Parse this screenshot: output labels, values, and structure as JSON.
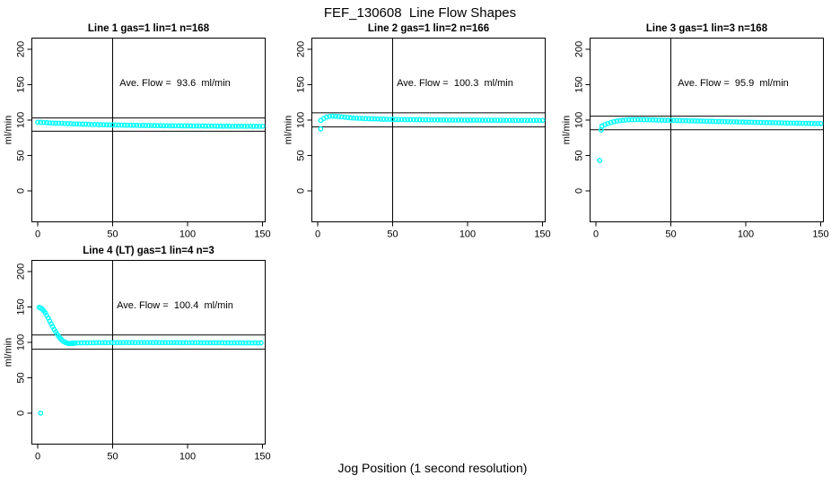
{
  "figure": {
    "title": "FEF_130608  Line Flow Shapes",
    "xlabel": "Jog Position (1 second resolution)",
    "ylabel": "ml/min",
    "point_color": "#00FFFF",
    "line_color": "#000000",
    "background": "#FFFFFF"
  },
  "chart_data": [
    {
      "type": "scatter",
      "title": "Line 1 gas=1 lin=1 n=168",
      "annotation": "Ave. Flow =  93.6  ml/min",
      "ave_flow": 93.6,
      "flow_units": "ml/min",
      "n": 168,
      "gas": 1,
      "lin": 1,
      "ylabel": "ml/min",
      "xlim": [
        -3.9,
        151.8
      ],
      "ylim": [
        -43.7,
        215.8
      ],
      "xticks": [
        0,
        50,
        100,
        150
      ],
      "yticks": [
        0,
        50,
        100,
        150,
        200
      ],
      "ref_lines_y": [
        102.96,
        84.24
      ],
      "vline_x": 50,
      "points": [
        [
          0,
          97.0
        ],
        [
          2,
          96.7
        ],
        [
          4,
          96.5
        ],
        [
          6,
          96.4
        ],
        [
          8,
          96.0
        ],
        [
          10,
          95.9
        ],
        [
          12,
          95.6
        ],
        [
          14,
          95.5
        ],
        [
          16,
          95.4
        ],
        [
          18,
          95.1
        ],
        [
          20,
          95.0
        ],
        [
          22,
          94.9
        ],
        [
          24,
          94.6
        ],
        [
          26,
          94.6
        ],
        [
          28,
          94.4
        ],
        [
          30,
          94.2
        ],
        [
          32,
          94.2
        ],
        [
          34,
          94.0
        ],
        [
          36,
          93.8
        ],
        [
          38,
          93.8
        ],
        [
          40,
          93.7
        ],
        [
          42,
          93.5
        ],
        [
          44,
          93.5
        ],
        [
          46,
          93.3
        ],
        [
          48,
          93.3
        ],
        [
          50,
          93.1
        ],
        [
          52,
          93.1
        ],
        [
          54,
          93.0
        ],
        [
          56,
          92.9
        ],
        [
          58,
          92.9
        ],
        [
          60,
          92.7
        ],
        [
          62,
          92.7
        ],
        [
          64,
          92.6
        ],
        [
          66,
          92.6
        ],
        [
          68,
          92.4
        ],
        [
          70,
          92.5
        ],
        [
          72,
          92.3
        ],
        [
          74,
          92.4
        ],
        [
          76,
          92.2
        ],
        [
          78,
          92.3
        ],
        [
          80,
          92.1
        ],
        [
          82,
          92.2
        ],
        [
          84,
          92.0
        ],
        [
          86,
          92.1
        ],
        [
          88,
          91.9
        ],
        [
          90,
          92.0
        ],
        [
          92,
          91.9
        ],
        [
          94,
          91.9
        ],
        [
          96,
          91.8
        ],
        [
          98,
          91.8
        ],
        [
          100,
          91.7
        ],
        [
          102,
          91.8
        ],
        [
          104,
          91.6
        ],
        [
          106,
          91.7
        ],
        [
          108,
          91.6
        ],
        [
          110,
          91.7
        ],
        [
          112,
          91.5
        ],
        [
          114,
          91.6
        ],
        [
          116,
          91.5
        ],
        [
          118,
          91.6
        ],
        [
          120,
          91.4
        ],
        [
          122,
          91.5
        ],
        [
          124,
          91.4
        ],
        [
          126,
          91.5
        ],
        [
          128,
          91.4
        ],
        [
          130,
          91.3
        ],
        [
          132,
          91.4
        ],
        [
          134,
          91.3
        ],
        [
          136,
          91.4
        ],
        [
          138,
          91.3
        ],
        [
          140,
          91.3
        ],
        [
          142,
          91.4
        ],
        [
          144,
          91.2
        ],
        [
          146,
          91.3
        ],
        [
          148,
          91.2
        ],
        [
          150,
          91.3
        ]
      ],
      "outliers": []
    },
    {
      "type": "scatter",
      "title": "Line 2 gas=1 lin=2 n=166",
      "annotation": "Ave. Flow =  100.3  ml/min",
      "ave_flow": 100.3,
      "flow_units": "ml/min",
      "n": 166,
      "gas": 1,
      "lin": 2,
      "ylabel": "ml/min",
      "xlim": [
        -3.9,
        151.8
      ],
      "ylim": [
        -43.7,
        215.8
      ],
      "xticks": [
        0,
        50,
        100,
        150
      ],
      "yticks": [
        0,
        50,
        100,
        150,
        200
      ],
      "ref_lines_y": [
        110.33,
        90.27
      ],
      "vline_x": 50,
      "points": [
        [
          2,
          99.5
        ],
        [
          4,
          102.3
        ],
        [
          6,
          104.3
        ],
        [
          8,
          105.2
        ],
        [
          10,
          105.5
        ],
        [
          12,
          105.3
        ],
        [
          14,
          105.0
        ],
        [
          16,
          104.6
        ],
        [
          18,
          104.1
        ],
        [
          20,
          103.6
        ],
        [
          22,
          103.2
        ],
        [
          24,
          102.9
        ],
        [
          26,
          102.7
        ],
        [
          28,
          102.5
        ],
        [
          30,
          102.3
        ],
        [
          32,
          102.1
        ],
        [
          34,
          102.0
        ],
        [
          36,
          101.8
        ],
        [
          38,
          101.7
        ],
        [
          40,
          101.6
        ],
        [
          42,
          101.4
        ],
        [
          44,
          101.3
        ],
        [
          46,
          101.2
        ],
        [
          48,
          101.1
        ],
        [
          50,
          101.0
        ],
        [
          52,
          100.9
        ],
        [
          54,
          100.9
        ],
        [
          56,
          100.8
        ],
        [
          58,
          100.7
        ],
        [
          60,
          100.7
        ],
        [
          62,
          100.6
        ],
        [
          64,
          100.6
        ],
        [
          66,
          100.5
        ],
        [
          68,
          100.5
        ],
        [
          70,
          100.4
        ],
        [
          72,
          100.4
        ],
        [
          74,
          100.3
        ],
        [
          76,
          100.3
        ],
        [
          78,
          100.3
        ],
        [
          80,
          100.2
        ],
        [
          82,
          100.2
        ],
        [
          84,
          100.2
        ],
        [
          86,
          100.1
        ],
        [
          88,
          100.1
        ],
        [
          90,
          100.1
        ],
        [
          92,
          100.0
        ],
        [
          94,
          100.1
        ],
        [
          96,
          100.0
        ],
        [
          98,
          100.0
        ],
        [
          100,
          99.9
        ],
        [
          102,
          100.0
        ],
        [
          104,
          99.9
        ],
        [
          106,
          100.0
        ],
        [
          108,
          99.9
        ],
        [
          110,
          99.9
        ],
        [
          112,
          99.8
        ],
        [
          114,
          99.9
        ],
        [
          116,
          99.8
        ],
        [
          118,
          99.9
        ],
        [
          120,
          99.8
        ],
        [
          122,
          99.8
        ],
        [
          124,
          99.7
        ],
        [
          126,
          99.8
        ],
        [
          128,
          99.7
        ],
        [
          130,
          99.8
        ],
        [
          132,
          99.7
        ],
        [
          134,
          99.7
        ],
        [
          136,
          99.6
        ],
        [
          138,
          99.7
        ],
        [
          140,
          99.6
        ],
        [
          142,
          99.7
        ],
        [
          144,
          99.6
        ],
        [
          146,
          99.6
        ],
        [
          148,
          99.5
        ],
        [
          150,
          99.6
        ]
      ],
      "outliers": [
        [
          2,
          87.5
        ]
      ]
    },
    {
      "type": "scatter",
      "title": "Line 3 gas=1 lin=3 n=168",
      "annotation": "Ave. Flow =  95.9  ml/min",
      "ave_flow": 95.9,
      "flow_units": "ml/min",
      "n": 168,
      "gas": 1,
      "lin": 3,
      "ylabel": "ml/min",
      "xlim": [
        -3.9,
        151.8
      ],
      "ylim": [
        -43.7,
        215.8
      ],
      "xticks": [
        0,
        50,
        100,
        150
      ],
      "yticks": [
        0,
        50,
        100,
        150,
        200
      ],
      "ref_lines_y": [
        105.49,
        86.31
      ],
      "vline_x": 50,
      "points": [
        [
          4,
          91.5
        ],
        [
          6,
          93.6
        ],
        [
          8,
          95.2
        ],
        [
          10,
          96.6
        ],
        [
          12,
          97.7
        ],
        [
          14,
          98.6
        ],
        [
          16,
          99.2
        ],
        [
          18,
          99.7
        ],
        [
          20,
          100.1
        ],
        [
          22,
          100.4
        ],
        [
          24,
          100.5
        ],
        [
          26,
          100.6
        ],
        [
          28,
          100.6
        ],
        [
          30,
          100.6
        ],
        [
          32,
          100.5
        ],
        [
          34,
          100.4
        ],
        [
          36,
          100.3
        ],
        [
          38,
          100.2
        ],
        [
          40,
          100.1
        ],
        [
          42,
          100.0
        ],
        [
          44,
          99.9
        ],
        [
          46,
          99.8
        ],
        [
          48,
          99.7
        ],
        [
          50,
          99.6
        ],
        [
          52,
          99.5
        ],
        [
          54,
          99.4
        ],
        [
          56,
          99.3
        ],
        [
          58,
          99.2
        ],
        [
          60,
          99.1
        ],
        [
          62,
          99.0
        ],
        [
          64,
          98.9
        ],
        [
          66,
          98.8
        ],
        [
          68,
          98.7
        ],
        [
          70,
          98.6
        ],
        [
          72,
          98.5
        ],
        [
          74,
          98.4
        ],
        [
          76,
          98.3
        ],
        [
          78,
          98.2
        ],
        [
          80,
          98.1
        ],
        [
          82,
          98.0
        ],
        [
          84,
          97.9
        ],
        [
          86,
          97.8
        ],
        [
          88,
          97.7
        ],
        [
          90,
          97.6
        ],
        [
          92,
          97.5
        ],
        [
          94,
          97.4
        ],
        [
          96,
          97.3
        ],
        [
          98,
          97.2
        ],
        [
          100,
          97.1
        ],
        [
          102,
          97.0
        ],
        [
          104,
          96.9
        ],
        [
          106,
          96.8
        ],
        [
          108,
          96.7
        ],
        [
          110,
          96.6
        ],
        [
          112,
          96.5
        ],
        [
          114,
          96.4
        ],
        [
          116,
          96.4
        ],
        [
          118,
          96.3
        ],
        [
          120,
          96.2
        ],
        [
          122,
          96.1
        ],
        [
          124,
          96.0
        ],
        [
          126,
          95.9
        ],
        [
          128,
          95.8
        ],
        [
          130,
          95.7
        ],
        [
          132,
          95.7
        ],
        [
          134,
          95.6
        ],
        [
          136,
          95.5
        ],
        [
          138,
          95.4
        ],
        [
          140,
          95.3
        ],
        [
          142,
          95.3
        ],
        [
          144,
          95.2
        ],
        [
          146,
          95.1
        ],
        [
          148,
          95.0
        ],
        [
          150,
          95.0
        ]
      ],
      "outliers": [
        [
          2.5,
          43.0
        ],
        [
          3.5,
          86.0
        ]
      ]
    },
    {
      "type": "scatter",
      "title": "Line 4 (LT) gas=1 lin=4 n=3",
      "annotation": "Ave. Flow =  100.4  ml/min",
      "ave_flow": 100.4,
      "flow_units": "ml/min",
      "n": 3,
      "gas": 1,
      "lin": 4,
      "ylabel": "ml/min",
      "xlim": [
        -3.9,
        151.8
      ],
      "ylim": [
        -43.7,
        215.8
      ],
      "xticks": [
        0,
        50,
        100,
        150
      ],
      "yticks": [
        0,
        50,
        100,
        150,
        200
      ],
      "ref_lines_y": [
        110.44,
        90.36
      ],
      "vline_x": 50,
      "points": [
        [
          1,
          149.5
        ],
        [
          2,
          148.6
        ],
        [
          3,
          147.0
        ],
        [
          4,
          144.6
        ],
        [
          5,
          141.6
        ],
        [
          6,
          138.1
        ],
        [
          7,
          134.3
        ],
        [
          8,
          130.3
        ],
        [
          9,
          126.2
        ],
        [
          10,
          122.2
        ],
        [
          11,
          118.3
        ],
        [
          12,
          114.7
        ],
        [
          13,
          111.4
        ],
        [
          14,
          108.4
        ],
        [
          15,
          105.8
        ],
        [
          16,
          103.6
        ],
        [
          17,
          101.8
        ],
        [
          18,
          100.4
        ],
        [
          19,
          99.4
        ],
        [
          20,
          98.8
        ],
        [
          21,
          98.5
        ],
        [
          22,
          98.5
        ],
        [
          23,
          98.6
        ],
        [
          24,
          98.8
        ],
        [
          25,
          99.0
        ],
        [
          27,
          99.2
        ],
        [
          29,
          99.3
        ],
        [
          31,
          99.4
        ],
        [
          33,
          99.3
        ],
        [
          35,
          99.5
        ],
        [
          37,
          99.4
        ],
        [
          39,
          99.5
        ],
        [
          41,
          99.6
        ],
        [
          43,
          99.5
        ],
        [
          45,
          99.6
        ],
        [
          47,
          99.5
        ],
        [
          49,
          99.7
        ],
        [
          51,
          99.6
        ],
        [
          53,
          99.7
        ],
        [
          55,
          99.6
        ],
        [
          57,
          99.7
        ],
        [
          59,
          99.8
        ],
        [
          61,
          99.7
        ],
        [
          63,
          99.8
        ],
        [
          65,
          99.7
        ],
        [
          67,
          99.8
        ],
        [
          69,
          99.7
        ],
        [
          71,
          99.8
        ],
        [
          73,
          99.7
        ],
        [
          75,
          99.8
        ],
        [
          77,
          99.7
        ],
        [
          79,
          99.8
        ],
        [
          81,
          99.7
        ],
        [
          83,
          99.6
        ],
        [
          85,
          99.7
        ],
        [
          87,
          99.6
        ],
        [
          89,
          99.7
        ],
        [
          91,
          99.6
        ],
        [
          93,
          99.7
        ],
        [
          95,
          99.6
        ],
        [
          97,
          99.5
        ],
        [
          99,
          99.6
        ],
        [
          101,
          99.5
        ],
        [
          103,
          99.6
        ],
        [
          105,
          99.5
        ],
        [
          107,
          99.6
        ],
        [
          109,
          99.5
        ],
        [
          111,
          99.4
        ],
        [
          113,
          99.5
        ],
        [
          115,
          99.4
        ],
        [
          117,
          99.5
        ],
        [
          119,
          99.4
        ],
        [
          121,
          99.5
        ],
        [
          123,
          99.4
        ],
        [
          125,
          99.3
        ],
        [
          127,
          99.4
        ],
        [
          129,
          99.3
        ],
        [
          131,
          99.4
        ],
        [
          133,
          99.3
        ],
        [
          135,
          99.4
        ],
        [
          137,
          99.3
        ],
        [
          139,
          99.2
        ],
        [
          141,
          99.3
        ],
        [
          143,
          99.2
        ],
        [
          145,
          99.3
        ],
        [
          147,
          99.2
        ],
        [
          149,
          99.3
        ]
      ],
      "outliers": [
        [
          2,
          0.0
        ]
      ]
    }
  ]
}
